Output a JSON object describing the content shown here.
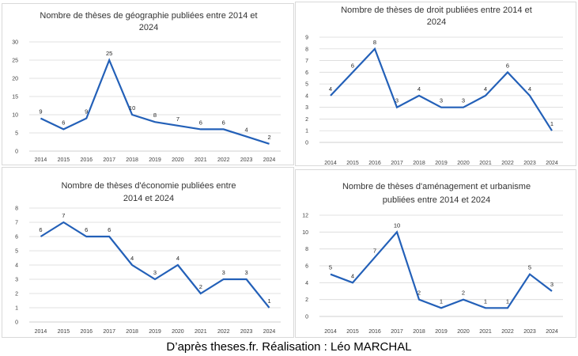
{
  "chart_data": [
    {
      "type": "line",
      "title_lines": [
        "Nombre de thèses de géographie publiées entre 2014 et",
        "2024"
      ],
      "categories": [
        "2014",
        "2015",
        "2016",
        "2017",
        "2018",
        "2019",
        "2020",
        "2021",
        "2022",
        "2023",
        "2024"
      ],
      "values": [
        9,
        6,
        9,
        25,
        10,
        8,
        7,
        6,
        6,
        4,
        2
      ],
      "y_ticks": [
        0,
        5,
        10,
        15,
        20,
        25,
        30
      ],
      "ylim": [
        0,
        30
      ],
      "color": "#2360b8"
    },
    {
      "type": "line",
      "title_lines": [
        "Nombre de thèses de droit publiées entre 2014 et",
        "2024"
      ],
      "categories": [
        "2014",
        "2015",
        "2016",
        "2017",
        "2018",
        "2019",
        "2020",
        "2021",
        "2022",
        "2023",
        "2024"
      ],
      "values": [
        4,
        6,
        8,
        3,
        4,
        3,
        3,
        4,
        6,
        4,
        1
      ],
      "y_ticks": [
        0,
        1,
        2,
        3,
        4,
        5,
        6,
        7,
        8,
        9
      ],
      "ylim": [
        0,
        9
      ],
      "color": "#2360b8"
    },
    {
      "type": "line",
      "title_lines": [
        "Nombre de thèses d'économie publiées entre",
        "2014 et 2024"
      ],
      "categories": [
        "2014",
        "2015",
        "2016",
        "2017",
        "2018",
        "2019",
        "2020",
        "2021",
        "2022",
        "2023",
        "2024"
      ],
      "values": [
        6,
        7,
        6,
        6,
        4,
        3,
        4,
        2,
        3,
        3,
        1
      ],
      "y_ticks": [
        0,
        1,
        2,
        3,
        4,
        5,
        6,
        7,
        8
      ],
      "ylim": [
        0,
        8
      ],
      "color": "#2360b8"
    },
    {
      "type": "line",
      "title_lines": [
        "Nombre de thèses d'aménagement et urbanisme",
        "publiées entre 2014 et 2024"
      ],
      "categories": [
        "2014",
        "2015",
        "2016",
        "2017",
        "2018",
        "2019",
        "2020",
        "2021",
        "2022",
        "2023",
        "2024"
      ],
      "values": [
        5,
        4,
        7,
        10,
        2,
        1,
        2,
        1,
        1,
        5,
        3
      ],
      "y_ticks": [
        0,
        2,
        4,
        6,
        8,
        10,
        12
      ],
      "ylim": [
        0,
        12
      ],
      "color": "#2360b8"
    }
  ],
  "credit": "D’après theses.fr. Réalisation : Léo MARCHAL"
}
